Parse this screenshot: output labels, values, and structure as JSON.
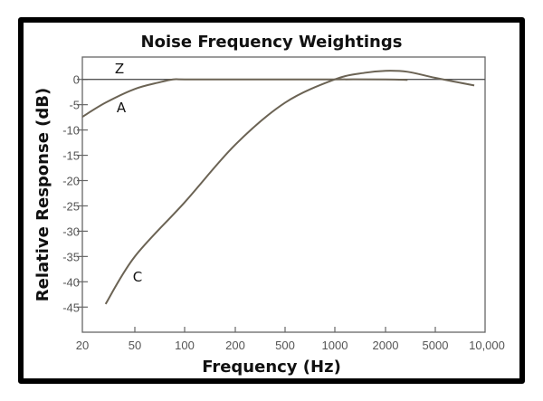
{
  "chart_data": {
    "type": "line",
    "title": "Noise Frequency Weightings",
    "xlabel": "Frequency (Hz)",
    "ylabel": "Relative Response (dB)",
    "x_scale": "log",
    "x_ticks": [
      20,
      50,
      100,
      200,
      500,
      1000,
      2000,
      5000,
      10000
    ],
    "x_tick_labels": [
      "20",
      "50",
      "100",
      "200",
      "500",
      "1000",
      "2000",
      "5000",
      "10,000"
    ],
    "y_ticks": [
      0,
      -5,
      -10,
      -15,
      -20,
      -25,
      -30,
      -35,
      -40,
      -45
    ],
    "y_tick_labels": [
      "0",
      "-5",
      "-10",
      "-15",
      "-20",
      "-25",
      "-30",
      "-35",
      "-40",
      "-45"
    ],
    "xlim": [
      20,
      10000
    ],
    "ylim": [
      -49.5,
      4.5
    ],
    "grid": false,
    "line_color": "#6b6354",
    "series": [
      {
        "name": "Z",
        "x": [
          20,
          10000
        ],
        "y": [
          0,
          0
        ]
      },
      {
        "name": "A",
        "x": [
          20,
          30,
          50,
          70,
          85,
          100,
          200,
          500,
          1000,
          2000,
          3000
        ],
        "y": [
          -7.4,
          -4.6,
          -1.9,
          -0.6,
          0,
          0,
          0,
          0,
          0,
          0,
          -0.1
        ]
      },
      {
        "name": "C",
        "x": [
          30,
          50,
          100,
          200,
          500,
          1000,
          1500,
          2000,
          3000,
          5000,
          8600
        ],
        "y": [
          -44.4,
          -35,
          -24.3,
          -12.9,
          -4.6,
          0,
          1.3,
          1.7,
          1.5,
          0.3,
          -1.2
        ]
      }
    ]
  }
}
